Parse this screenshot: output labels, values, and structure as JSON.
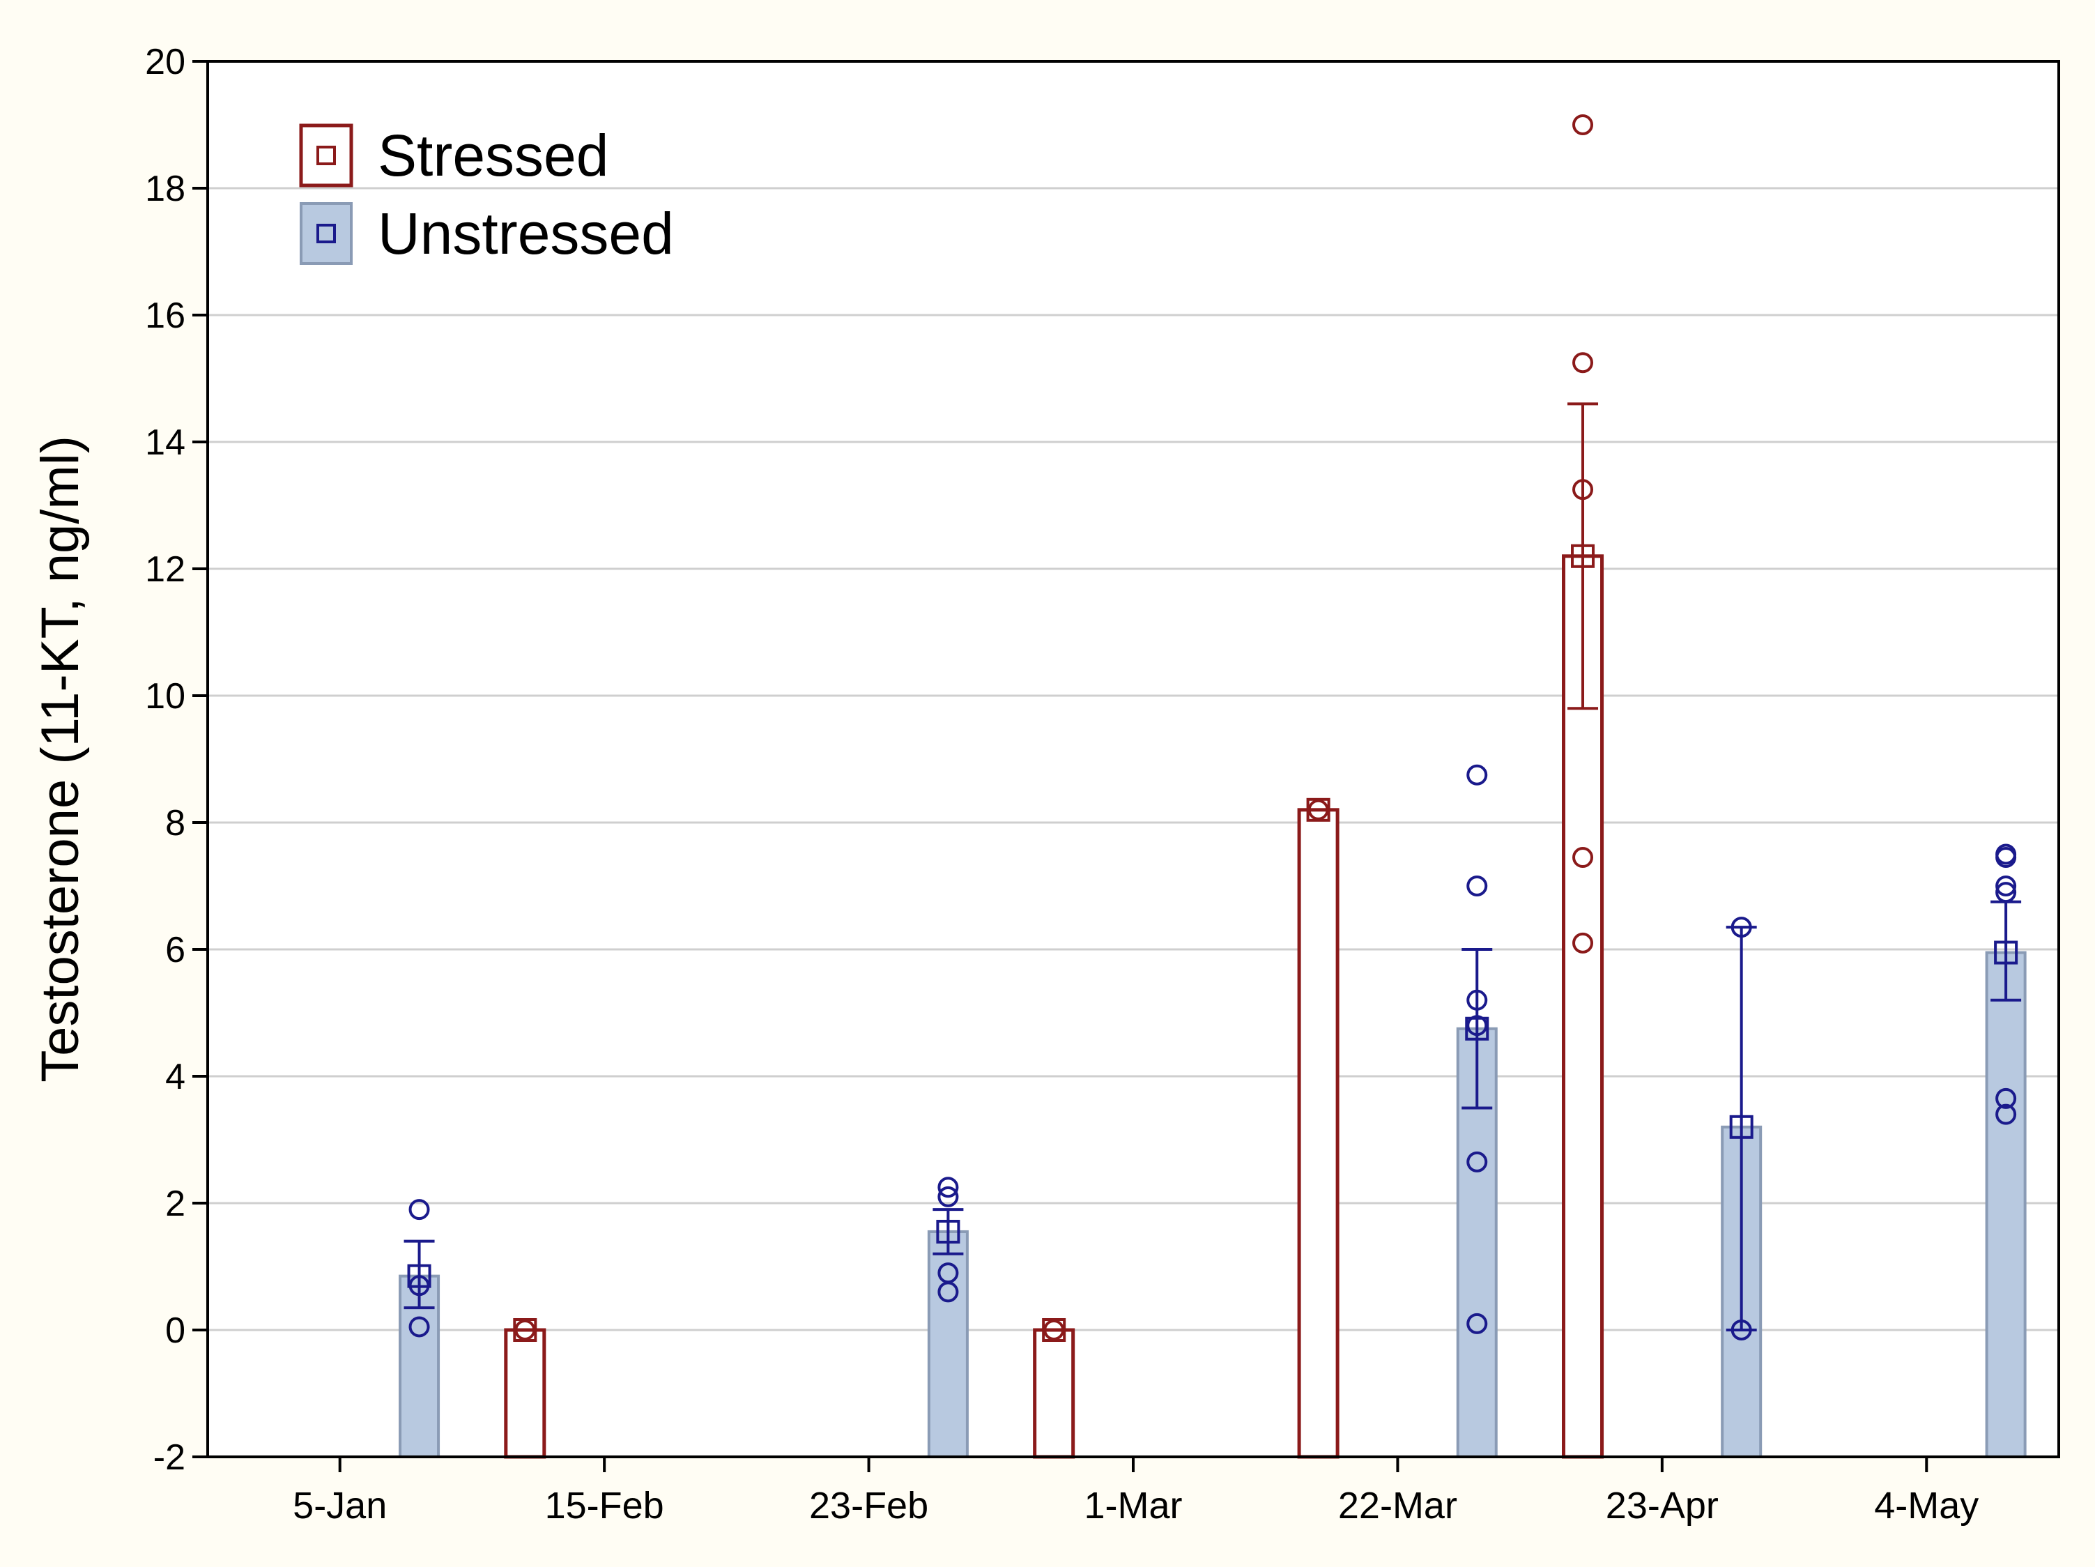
{
  "chart_data": {
    "type": "bar",
    "ylabel": "Testosterone (11-KT, ng/ml)",
    "xlabel": "",
    "ylim": [
      -2,
      20
    ],
    "yticks": [
      -2,
      0,
      2,
      4,
      6,
      8,
      10,
      12,
      14,
      16,
      18,
      20
    ],
    "grid": true,
    "legend_position": "top-left",
    "categories": [
      "5-Jan",
      "15-Feb",
      "23-Feb",
      "1-Mar",
      "22-Mar",
      "23-Apr",
      "4-May"
    ],
    "series": [
      {
        "name": "Stressed",
        "color": "#8b1a1a",
        "fill": "#ffffff",
        "values": [
          null,
          0.0,
          null,
          0.0,
          8.2,
          12.2,
          null
        ],
        "err_low": [
          null,
          null,
          null,
          null,
          null,
          9.8,
          null
        ],
        "err_high": [
          null,
          null,
          null,
          null,
          null,
          14.6,
          null
        ],
        "points": [
          [],
          [
            0.0
          ],
          [],
          [
            0.0
          ],
          [
            8.2
          ],
          [
            19.0,
            15.25,
            13.25,
            7.45,
            6.1
          ],
          []
        ]
      },
      {
        "name": "Unstressed",
        "color": "#1a1a8c",
        "fill": "#b8c9e0",
        "values": [
          0.85,
          null,
          1.55,
          null,
          4.75,
          3.2,
          5.95
        ],
        "err_low": [
          0.35,
          null,
          1.2,
          null,
          3.5,
          0.0,
          5.2
        ],
        "err_high": [
          1.4,
          null,
          1.9,
          null,
          6.0,
          6.35,
          6.75
        ],
        "points": [
          [
            1.9,
            0.7,
            0.05
          ],
          [],
          [
            2.25,
            2.1,
            0.9,
            0.6
          ],
          [],
          [
            8.75,
            7.0,
            5.2,
            4.8,
            2.65,
            0.1
          ],
          [
            6.35,
            0.0
          ],
          [
            7.5,
            7.45,
            7.0,
            6.9,
            3.65,
            3.4
          ]
        ]
      }
    ]
  }
}
